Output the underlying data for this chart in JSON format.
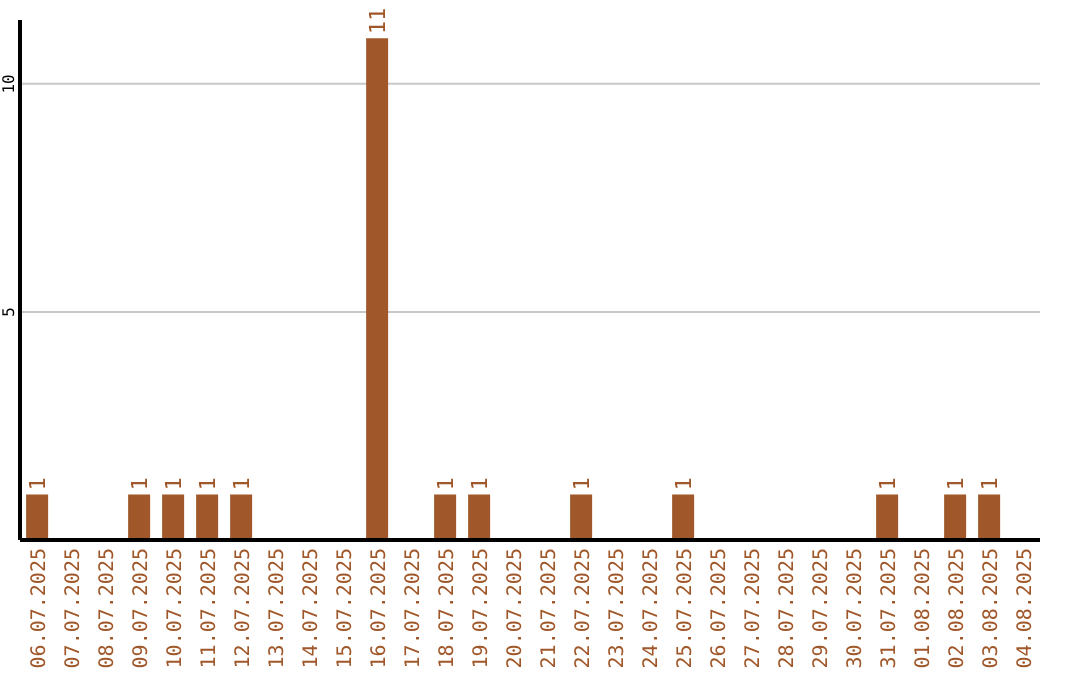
{
  "chart_data": {
    "type": "bar",
    "categories": [
      "06.07.2025",
      "07.07.2025",
      "08.07.2025",
      "09.07.2025",
      "10.07.2025",
      "11.07.2025",
      "12.07.2025",
      "13.07.2025",
      "14.07.2025",
      "15.07.2025",
      "16.07.2025",
      "17.07.2025",
      "18.07.2025",
      "19.07.2025",
      "20.07.2025",
      "21.07.2025",
      "22.07.2025",
      "23.07.2025",
      "24.07.2025",
      "25.07.2025",
      "26.07.2025",
      "27.07.2025",
      "28.07.2025",
      "29.07.2025",
      "30.07.2025",
      "31.07.2025",
      "01.08.2025",
      "02.08.2025",
      "03.08.2025",
      "04.08.2025"
    ],
    "values": [
      1,
      0,
      0,
      1,
      1,
      1,
      1,
      0,
      0,
      0,
      11,
      0,
      1,
      1,
      0,
      0,
      1,
      0,
      0,
      1,
      0,
      0,
      0,
      0,
      0,
      1,
      0,
      1,
      1,
      0
    ],
    "value_labels": [
      "1",
      null,
      null,
      "1",
      "1",
      "1",
      "1",
      null,
      null,
      null,
      "11",
      null,
      "1",
      "1",
      null,
      null,
      "1",
      null,
      null,
      "1",
      null,
      null,
      null,
      null,
      null,
      "1",
      null,
      "1",
      "1",
      null
    ],
    "color": "#a0582a",
    "ylim": [
      0,
      11.4
    ],
    "yticks": [
      5,
      10
    ],
    "grid": "y",
    "legend": false
  }
}
